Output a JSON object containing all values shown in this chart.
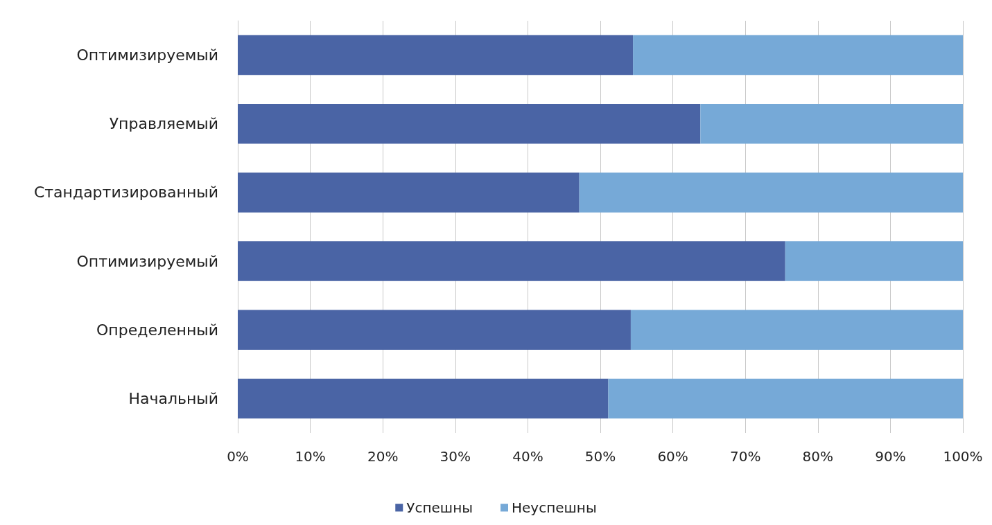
{
  "chart_data": {
    "type": "bar",
    "orientation": "horizontal",
    "stacked": true,
    "categories": [
      "Оптимизируемый",
      "Управляемый",
      "Стандартизированный",
      "Оптимизируемый",
      "Определенный",
      "Начальный"
    ],
    "series": [
      {
        "name": "Успешны",
        "color": "#4a64a5",
        "values": [
          54.5,
          63.8,
          47.1,
          75.5,
          54.2,
          51.1
        ]
      },
      {
        "name": "Неуспешны",
        "color": "#76a9d7",
        "values": [
          45.5,
          36.2,
          52.9,
          24.5,
          45.8,
          48.9
        ]
      }
    ],
    "xlim": [
      0,
      100
    ],
    "xticks": [
      {
        "value": 0,
        "label": "0%"
      },
      {
        "value": 10,
        "label": "10%"
      },
      {
        "value": 20,
        "label": "20%"
      },
      {
        "value": 30,
        "label": "30%"
      },
      {
        "value": 40,
        "label": "40%"
      },
      {
        "value": 50,
        "label": "50%"
      },
      {
        "value": 60,
        "label": "60%"
      },
      {
        "value": 70,
        "label": "70%"
      },
      {
        "value": 80,
        "label": "80%"
      },
      {
        "value": 90,
        "label": "90%"
      },
      {
        "value": 100,
        "label": "100%"
      }
    ],
    "grid": "x",
    "legend": "bottom"
  }
}
